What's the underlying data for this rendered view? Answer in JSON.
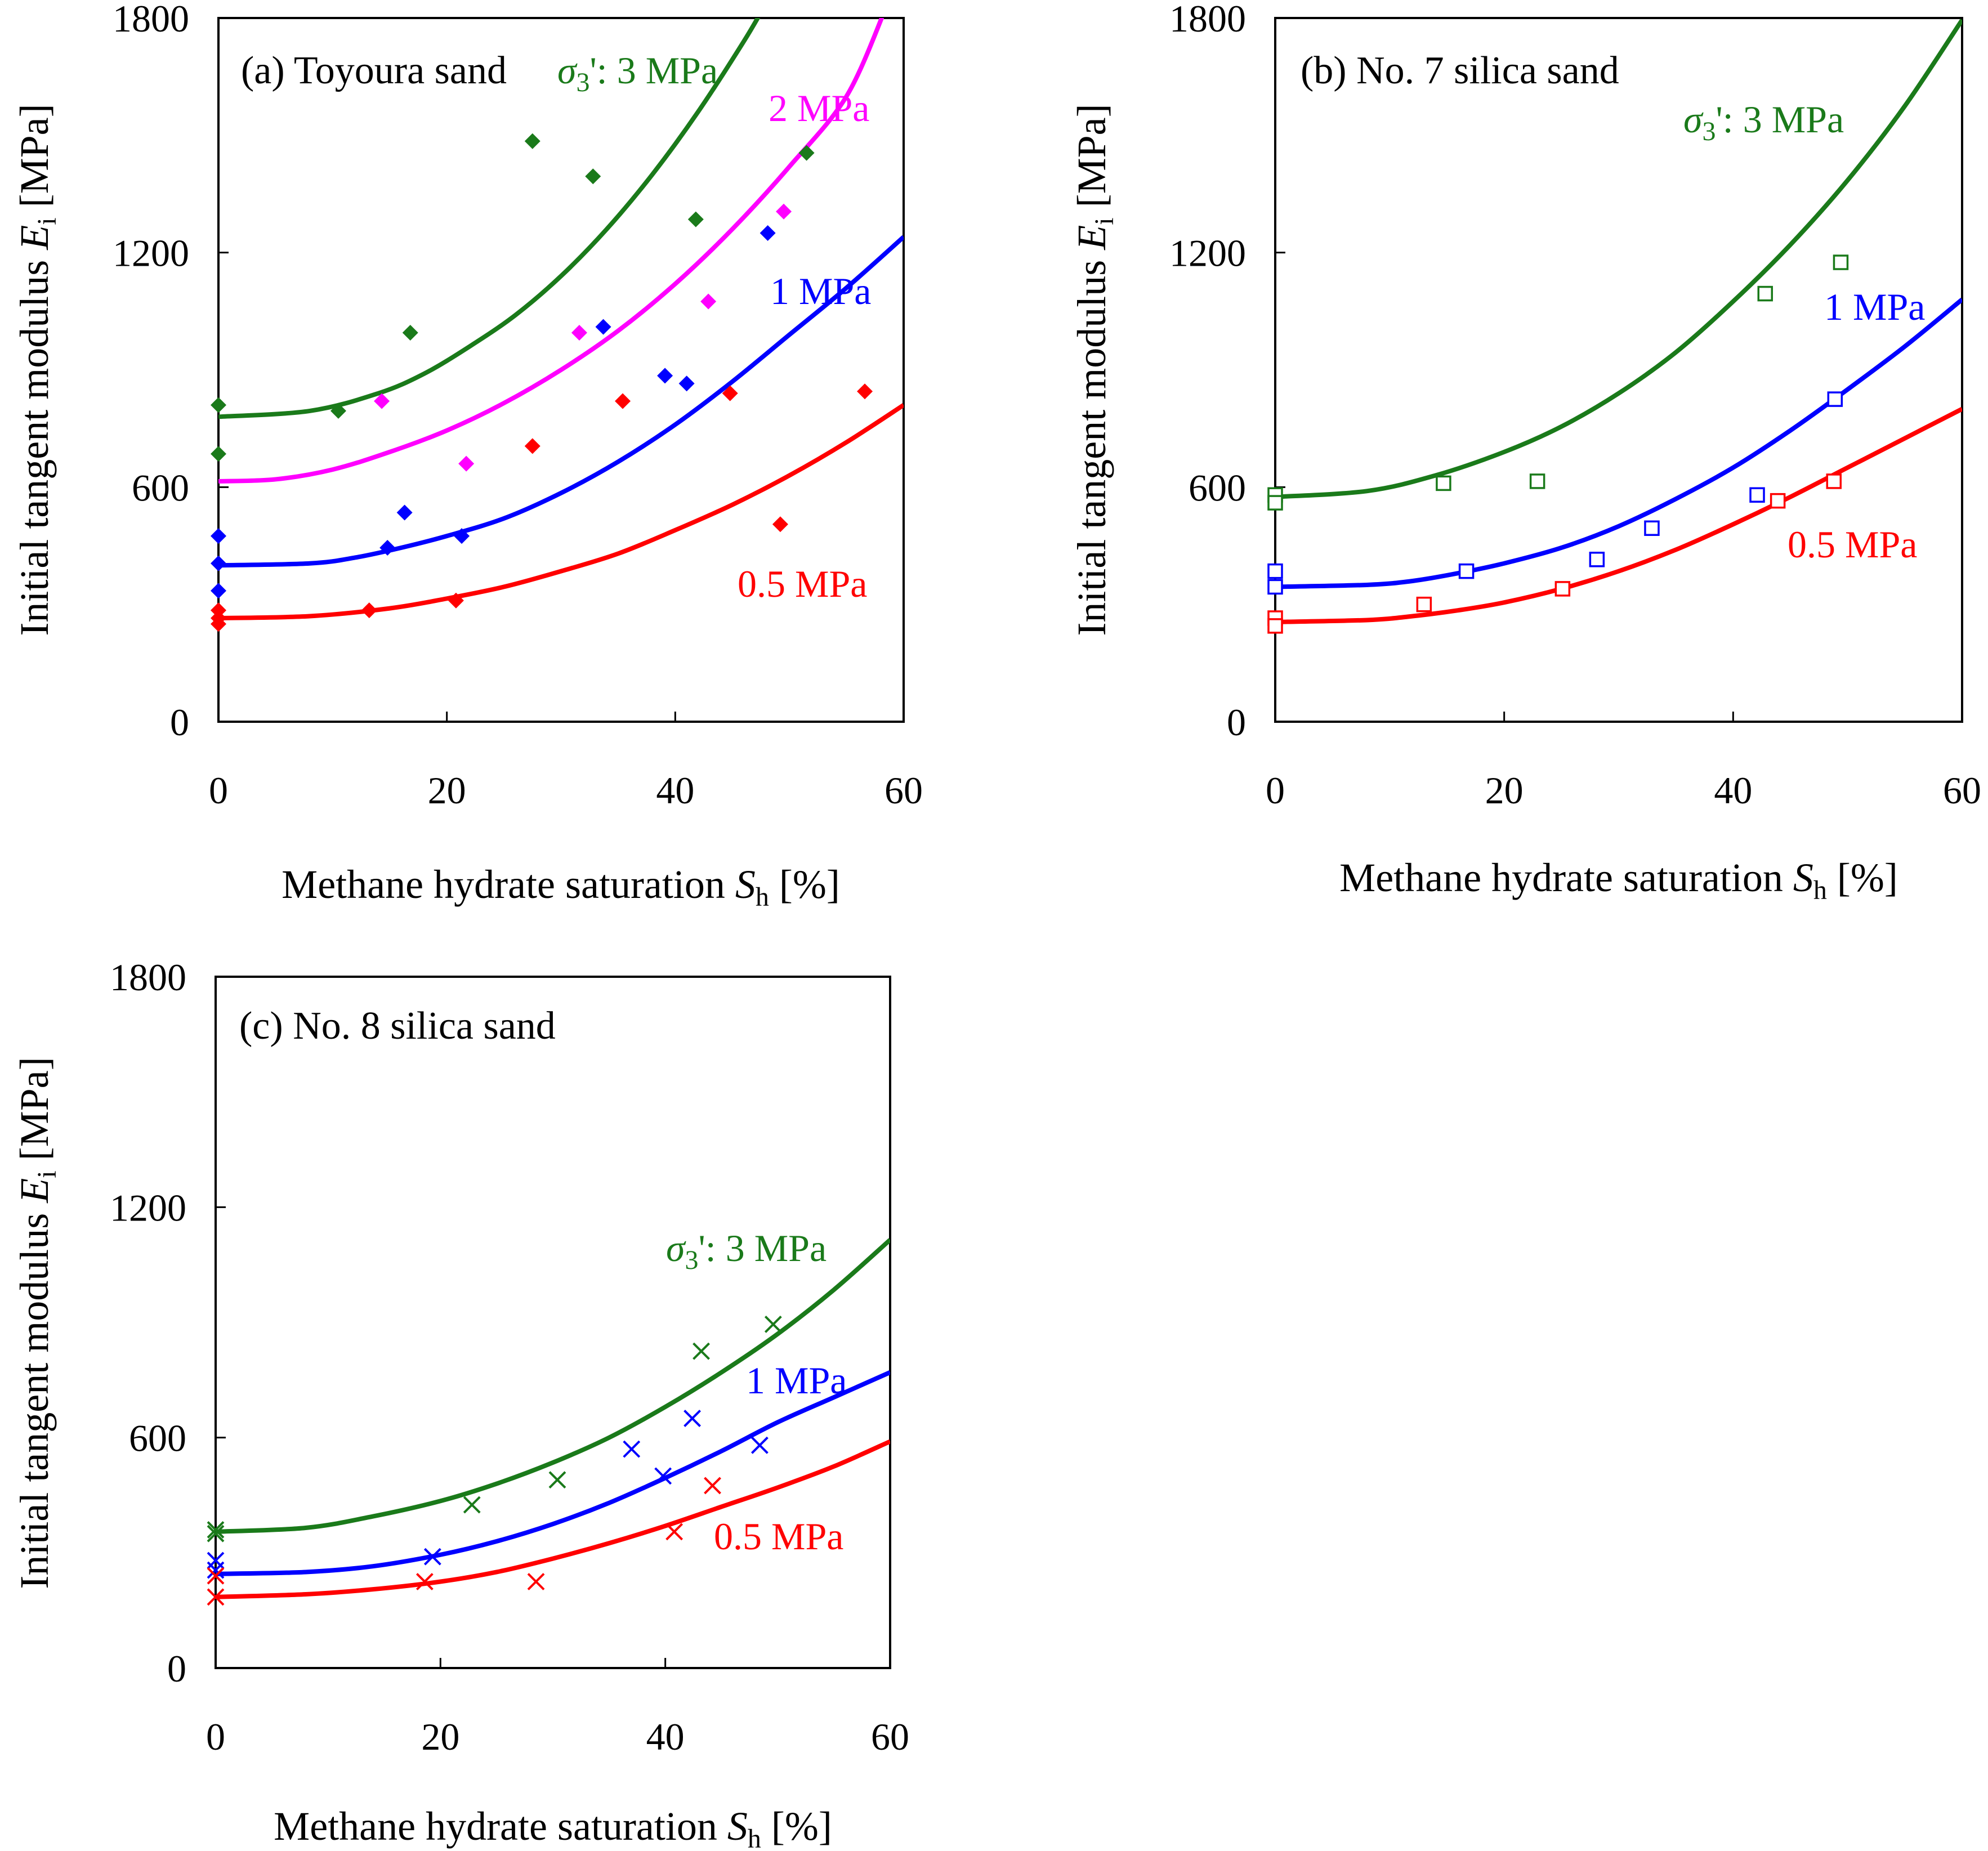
{
  "chart_data": [
    {
      "panel": "a",
      "type": "scatter",
      "title": "(a) Toyoura sand",
      "xlabel": "Methane hydrate saturation",
      "xlabel_symbol": "S",
      "xlabel_subscript": "h",
      "xlabel_unit": "[%]",
      "ylabel": "Initial tangent modulus",
      "ylabel_symbol": "E",
      "ylabel_subscript": "i",
      "ylabel_unit": "[MPa]",
      "xlim": [
        0,
        60
      ],
      "ylim": [
        0,
        1800
      ],
      "xticks": [
        0,
        20,
        40,
        60
      ],
      "yticks": [
        0,
        600,
        1200,
        1800
      ],
      "marker": "diamond",
      "series": [
        {
          "name": "3 MPa",
          "label": "σ3': 3 MPa",
          "color": "#1a7a1a",
          "points": [
            [
              0,
              810
            ],
            [
              0,
              685
            ],
            [
              10.5,
              795
            ],
            [
              16.8,
              995
            ],
            [
              27.5,
              1485
            ],
            [
              32.8,
              1395
            ],
            [
              41.8,
              1285
            ],
            [
              51.5,
              1455
            ]
          ],
          "curve": [
            [
              0,
              780
            ],
            [
              8,
              795
            ],
            [
              14,
              840
            ],
            [
              18,
              890
            ],
            [
              22,
              960
            ],
            [
              26,
              1040
            ],
            [
              30,
              1140
            ],
            [
              34,
              1260
            ],
            [
              38,
              1400
            ],
            [
              42,
              1560
            ],
            [
              46,
              1740
            ],
            [
              48,
              1840
            ]
          ]
        },
        {
          "name": "2 MPa",
          "label": "2 MPa",
          "color": "#ff00ff",
          "points": [
            [
              14.3,
              820
            ],
            [
              21.7,
              660
            ],
            [
              31.6,
              995
            ],
            [
              42.9,
              1075
            ],
            [
              49.5,
              1305
            ]
          ],
          "curve": [
            [
              0,
              615
            ],
            [
              5,
              620
            ],
            [
              10,
              645
            ],
            [
              15,
              690
            ],
            [
              20,
              745
            ],
            [
              25,
              815
            ],
            [
              30,
              900
            ],
            [
              35,
              1000
            ],
            [
              40,
              1120
            ],
            [
              45,
              1260
            ],
            [
              50,
              1420
            ],
            [
              55,
              1600
            ],
            [
              58.5,
              1830
            ]
          ]
        },
        {
          "name": "1 MPa",
          "label": "1 MPa",
          "color": "#0000ff",
          "points": [
            [
              0,
              475
            ],
            [
              0,
              405
            ],
            [
              0,
              335
            ],
            [
              14.8,
              445
            ],
            [
              16.3,
              535
            ],
            [
              21.3,
              475
            ],
            [
              33.7,
              1010
            ],
            [
              39.1,
              885
            ],
            [
              41.0,
              865
            ],
            [
              48.1,
              1250
            ]
          ],
          "curve": [
            [
              0,
              400
            ],
            [
              8,
              405
            ],
            [
              12,
              420
            ],
            [
              16,
              445
            ],
            [
              20,
              475
            ],
            [
              25,
              520
            ],
            [
              30,
              585
            ],
            [
              35,
              665
            ],
            [
              40,
              760
            ],
            [
              45,
              870
            ],
            [
              50,
              990
            ],
            [
              55,
              1110
            ],
            [
              60,
              1240
            ]
          ]
        },
        {
          "name": "0.5 MPa",
          "label": "0.5 MPa",
          "color": "#ff0000",
          "points": [
            [
              0,
              285
            ],
            [
              0,
              265
            ],
            [
              0,
              250
            ],
            [
              13.2,
              285
            ],
            [
              20.8,
              310
            ],
            [
              27.5,
              705
            ],
            [
              35.4,
              820
            ],
            [
              44.8,
              840
            ],
            [
              49.2,
              505
            ],
            [
              56.6,
              845
            ]
          ],
          "curve": [
            [
              0,
              265
            ],
            [
              8,
              270
            ],
            [
              15,
              290
            ],
            [
              20,
              315
            ],
            [
              25,
              345
            ],
            [
              30,
              385
            ],
            [
              35,
              430
            ],
            [
              40,
              490
            ],
            [
              45,
              555
            ],
            [
              50,
              630
            ],
            [
              55,
              715
            ],
            [
              60,
              810
            ]
          ]
        }
      ]
    },
    {
      "panel": "b",
      "type": "scatter",
      "title": "(b) No. 7 silica sand",
      "xlabel": "Methane hydrate saturation",
      "xlabel_symbol": "S",
      "xlabel_subscript": "h",
      "xlabel_unit": "[%]",
      "ylabel": "Initial tangent modulus",
      "ylabel_symbol": "E",
      "ylabel_subscript": "i",
      "ylabel_unit": "[MPa]",
      "xlim": [
        0,
        60
      ],
      "ylim": [
        0,
        1800
      ],
      "xticks": [
        0,
        20,
        40,
        60
      ],
      "yticks": [
        0,
        600,
        1200,
        1800
      ],
      "marker": "square",
      "series": [
        {
          "name": "3 MPa",
          "label": "σ3': 3 MPa",
          "color": "#1a7a1a",
          "points": [
            [
              0,
              580
            ],
            [
              0,
              560
            ],
            [
              14.7,
              610
            ],
            [
              22.9,
              615
            ],
            [
              42.8,
              1095
            ],
            [
              49.4,
              1175
            ]
          ],
          "curve": [
            [
              0,
              575
            ],
            [
              8,
              590
            ],
            [
              14,
              630
            ],
            [
              20,
              690
            ],
            [
              25,
              755
            ],
            [
              30,
              840
            ],
            [
              35,
              945
            ],
            [
              40,
              1075
            ],
            [
              45,
              1220
            ],
            [
              50,
              1385
            ],
            [
              55,
              1575
            ],
            [
              60,
              1795
            ]
          ]
        },
        {
          "name": "1 MPa",
          "label": "1 MPa",
          "color": "#0000ff",
          "points": [
            [
              0,
              385
            ],
            [
              0,
              345
            ],
            [
              16.7,
              385
            ],
            [
              28.1,
              415
            ],
            [
              32.9,
              495
            ],
            [
              42.1,
              580
            ],
            [
              48.9,
              825
            ]
          ],
          "curve": [
            [
              0,
              345
            ],
            [
              8,
              350
            ],
            [
              12,
              360
            ],
            [
              16,
              380
            ],
            [
              20,
              405
            ],
            [
              25,
              445
            ],
            [
              30,
              500
            ],
            [
              35,
              570
            ],
            [
              40,
              650
            ],
            [
              45,
              745
            ],
            [
              50,
              850
            ],
            [
              55,
              960
            ],
            [
              60,
              1080
            ]
          ]
        },
        {
          "name": "0.5 MPa",
          "label": "0.5 MPa",
          "color": "#ff0000",
          "points": [
            [
              0,
              265
            ],
            [
              0,
              245
            ],
            [
              13.0,
              300
            ],
            [
              25.1,
              340
            ],
            [
              43.9,
              565
            ],
            [
              48.8,
              615
            ]
          ],
          "curve": [
            [
              0,
              255
            ],
            [
              8,
              260
            ],
            [
              12,
              270
            ],
            [
              16,
              285
            ],
            [
              20,
              305
            ],
            [
              25,
              340
            ],
            [
              30,
              385
            ],
            [
              35,
              440
            ],
            [
              40,
              505
            ],
            [
              45,
              575
            ],
            [
              50,
              650
            ],
            [
              55,
              725
            ],
            [
              60,
              800
            ]
          ]
        }
      ]
    },
    {
      "panel": "c",
      "type": "scatter",
      "title": "(c) No. 8 silica sand",
      "xlabel": "Methane hydrate saturation",
      "xlabel_symbol": "S",
      "xlabel_subscript": "h",
      "xlabel_unit": "[%]",
      "ylabel": "Initial tangent modulus",
      "ylabel_symbol": "E",
      "ylabel_subscript": "i",
      "ylabel_unit": "[MPa]",
      "xlim": [
        0,
        60
      ],
      "ylim": [
        0,
        1800
      ],
      "xticks": [
        0,
        20,
        40,
        60
      ],
      "yticks": [
        0,
        600,
        1200,
        1800
      ],
      "marker": "cross",
      "series": [
        {
          "name": "3 MPa",
          "label": "σ3': 3 MPa",
          "color": "#1a7a1a",
          "points": [
            [
              0,
              360
            ],
            [
              0,
              350
            ],
            [
              22.8,
              425
            ],
            [
              30.4,
              490
            ],
            [
              43.2,
              825
            ],
            [
              49.6,
              895
            ]
          ],
          "curve": [
            [
              0,
              355
            ],
            [
              8,
              365
            ],
            [
              14,
              395
            ],
            [
              20,
              435
            ],
            [
              25,
              480
            ],
            [
              30,
              535
            ],
            [
              35,
              600
            ],
            [
              40,
              680
            ],
            [
              45,
              770
            ],
            [
              50,
              870
            ],
            [
              55,
              985
            ],
            [
              60,
              1115
            ]
          ]
        },
        {
          "name": "1 MPa",
          "label": "1 MPa",
          "color": "#0000ff",
          "points": [
            [
              0,
              280
            ],
            [
              0,
              255
            ],
            [
              19.3,
              290
            ],
            [
              37.0,
              570
            ],
            [
              39.8,
              500
            ],
            [
              42.4,
              650
            ],
            [
              48.4,
              580
            ]
          ],
          "curve": [
            [
              0,
              245
            ],
            [
              8,
              250
            ],
            [
              14,
              265
            ],
            [
              20,
              295
            ],
            [
              25,
              330
            ],
            [
              30,
              375
            ],
            [
              35,
              430
            ],
            [
              40,
              495
            ],
            [
              45,
              565
            ],
            [
              50,
              640
            ],
            [
              55,
              705
            ],
            [
              60,
              770
            ]
          ]
        },
        {
          "name": "0.5 MPa",
          "label": "0.5 MPa",
          "color": "#ff0000",
          "points": [
            [
              0,
              240
            ],
            [
              0,
              185
            ],
            [
              18.6,
              225
            ],
            [
              28.5,
              225
            ],
            [
              40.8,
              355
            ],
            [
              44.2,
              475
            ]
          ],
          "curve": [
            [
              0,
              185
            ],
            [
              8,
              192
            ],
            [
              14,
              205
            ],
            [
              20,
              225
            ],
            [
              25,
              250
            ],
            [
              30,
              285
            ],
            [
              35,
              325
            ],
            [
              40,
              370
            ],
            [
              45,
              420
            ],
            [
              50,
              470
            ],
            [
              55,
              525
            ],
            [
              60,
              590
            ]
          ]
        }
      ]
    }
  ]
}
